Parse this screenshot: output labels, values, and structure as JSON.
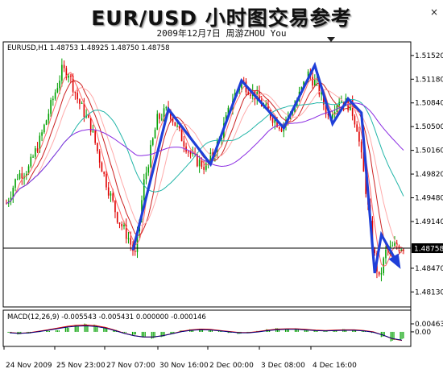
{
  "window": {
    "title": "EUR/USD 小时图交易参考",
    "subtitle": "2009年12月7日   周游ZHOU You",
    "close_glyph": "×"
  },
  "chart_data": [
    {
      "type": "candlestick",
      "header": "EURUSD,H1  1.48753 1.48925 1.48750 1.48758",
      "symbol": "EURUSD",
      "timeframe": "H1",
      "ohlc": {
        "open": 1.48753,
        "high": 1.48925,
        "low": 1.4875,
        "close": 1.48758
      },
      "current_price_label": "1.48758",
      "current_price": 1.48758,
      "ylim": [
        1.4795,
        1.5168
      ],
      "y_ticks": [
        1.5152,
        1.5118,
        1.5084,
        1.505,
        1.5016,
        1.4982,
        1.4948,
        1.4914,
        1.4847,
        1.4813
      ],
      "y_tick_labels": [
        "1.51520",
        "1.51180",
        "1.50840",
        "1.50500",
        "1.50160",
        "1.49820",
        "1.49480",
        "1.49140",
        "1.48470",
        "1.48130"
      ],
      "x_tick_labels": [
        "24 Nov 2009",
        "25 Nov 23:00",
        "27 Nov 07:00",
        "30 Nov 16:00",
        "2 Dec 00:00",
        "3 Dec 08:00",
        "4 Dec 16:00"
      ],
      "grid": false,
      "colors": {
        "bull": "#00a000",
        "bear": "#e00000",
        "zigzag": "#1f3fd8",
        "price_line": "#000000"
      },
      "price_path": [
        [
          0,
          1.494
        ],
        [
          5,
          1.498
        ],
        [
          10,
          1.499
        ],
        [
          15,
          1.503
        ],
        [
          20,
          1.508
        ],
        [
          25,
          1.513
        ],
        [
          28,
          1.5128
        ],
        [
          32,
          1.509
        ],
        [
          38,
          1.505
        ],
        [
          44,
          1.498
        ],
        [
          50,
          1.492
        ],
        [
          55,
          1.489
        ],
        [
          58,
          1.4865
        ],
        [
          62,
          1.497
        ],
        [
          68,
          1.506
        ],
        [
          73,
          1.5075
        ],
        [
          78,
          1.504
        ],
        [
          84,
          1.5005
        ],
        [
          90,
          1.4992
        ],
        [
          96,
          1.503
        ],
        [
          102,
          1.509
        ],
        [
          106,
          1.5115
        ],
        [
          112,
          1.5095
        ],
        [
          118,
          1.507
        ],
        [
          124,
          1.505
        ],
        [
          130,
          1.508
        ],
        [
          136,
          1.5125
        ],
        [
          140,
          1.511
        ],
        [
          145,
          1.5065
        ],
        [
          150,
          1.509
        ],
        [
          155,
          1.508
        ],
        [
          158,
          1.505
        ],
        [
          162,
          1.496
        ],
        [
          165,
          1.488
        ],
        [
          168,
          1.483
        ],
        [
          171,
          1.487
        ],
        [
          175,
          1.4878
        ]
      ],
      "moving_averages": [
        {
          "color": "#ff6666",
          "period": 5
        },
        {
          "color": "#cc2222",
          "period": 10
        },
        {
          "color": "#ffaaaa",
          "period": 15
        },
        {
          "color": "#22b5a8",
          "period": 30
        },
        {
          "color": "#8a2be2",
          "period": 60
        }
      ],
      "zigzag": [
        [
          57,
          1.4873
        ],
        [
          73,
          1.5075
        ],
        [
          92,
          1.4996
        ],
        [
          106,
          1.5116
        ],
        [
          125,
          1.5048
        ],
        [
          139,
          1.5138
        ],
        [
          147,
          1.5054
        ],
        [
          154,
          1.509
        ],
        [
          160,
          1.507
        ],
        [
          166,
          1.484
        ],
        [
          169,
          1.4895
        ],
        [
          177,
          1.485
        ]
      ]
    },
    {
      "type": "histogram",
      "header": "MACD(12,26,9) -0.005543 -0.005431 0.000000 -0.000146",
      "name": "MACD(12,26,9)",
      "values_readout": [
        -0.005543,
        -0.005431,
        0.0,
        -0.000146
      ],
      "y_tick_labels": [
        "0.00463",
        "0.00"
      ],
      "y_ticks": [
        0.00463,
        0.0
      ],
      "ylim": [
        -0.0075,
        0.0065
      ],
      "histogram": [
        -0.0005,
        -0.0015,
        -0.001,
        0.0003,
        0.0006,
        0.001,
        0.0028,
        0.004,
        0.0048,
        0.0042,
        0.003,
        0.0012,
        -0.0005,
        -0.0018,
        -0.0032,
        -0.004,
        -0.003,
        -0.0012,
        0.0008,
        0.0015,
        0.0018,
        0.0012,
        0.0004,
        -0.0006,
        -0.0012,
        -0.0008,
        0.0005,
        0.0015,
        0.0022,
        0.0018,
        0.002,
        0.0012,
        0.0008,
        0.0004,
        0.001,
        0.0016,
        0.0012,
        0.0006,
        -0.0006,
        -0.003,
        -0.0055,
        -0.0045
      ],
      "signal_line": [
        -0.0004,
        -0.0008,
        -0.0005,
        0.0003,
        0.0012,
        0.0022,
        0.0032,
        0.0038,
        0.004,
        0.0036,
        0.0026,
        0.001,
        -0.0008,
        -0.0022,
        -0.003,
        -0.003,
        -0.0022,
        -0.001,
        0.0004,
        0.0012,
        0.0016,
        0.0014,
        0.0008,
        0.0002,
        -0.0004,
        -0.0004,
        0.0002,
        0.001,
        0.0016,
        0.0018,
        0.0018,
        0.0014,
        0.001,
        0.0008,
        0.001,
        0.0012,
        0.0012,
        0.0008,
        0.0,
        -0.0018,
        -0.004,
        -0.005
      ]
    }
  ]
}
